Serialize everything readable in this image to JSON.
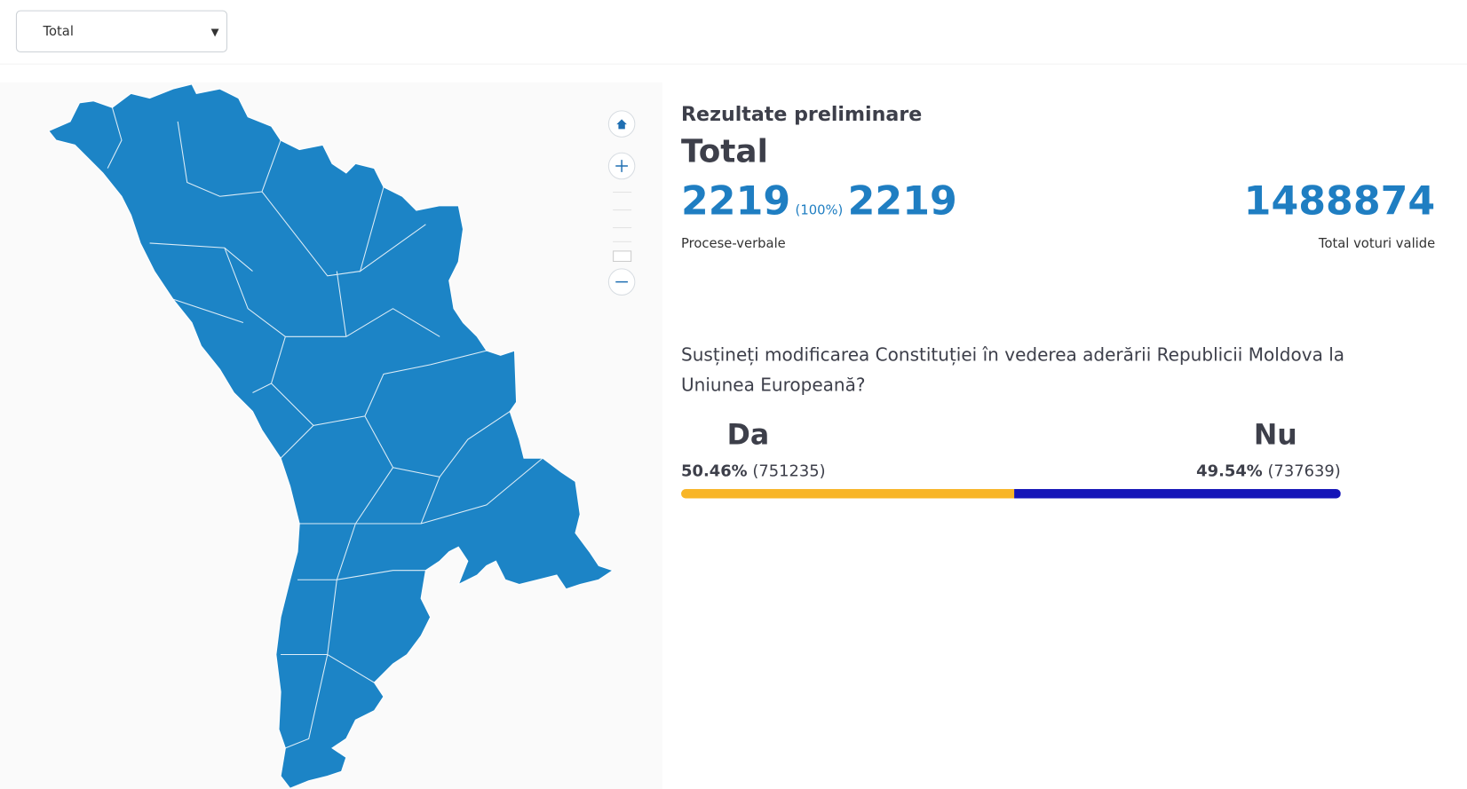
{
  "filter": {
    "selected": "Total"
  },
  "header": {
    "subtitle": "Rezultate preliminare",
    "title": "Total"
  },
  "stats": {
    "protocols_counted": 2219,
    "protocols_percent": "(100%)",
    "protocols_total": 2219,
    "protocols_label": "Procese-verbale",
    "valid_votes": 1488874,
    "valid_votes_label": "Total voturi valide"
  },
  "question": "Susțineți modificarea Constituției în vederea aderării Republicii Moldova la Uniunea Europeană?",
  "results": {
    "names": [
      "Da",
      "Nu"
    ],
    "values": [
      50.46,
      49.54
    ],
    "value_labels": [
      "50.46%",
      "49.54%"
    ],
    "votes": [
      "(751235)",
      "(737639)"
    ],
    "colors": [
      "#f8b527",
      "#1515b8"
    ]
  }
}
